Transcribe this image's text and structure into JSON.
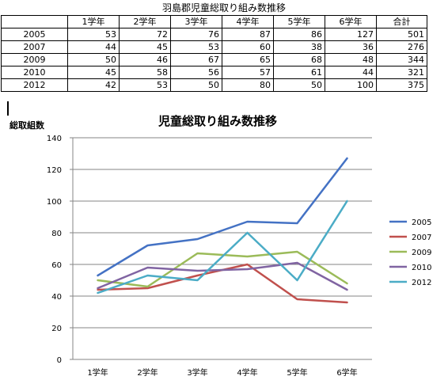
{
  "table": {
    "title": "羽島郡児童総取り組み数推移",
    "columns": [
      "",
      "1学年",
      "2学年",
      "3学年",
      "4学年",
      "5学年",
      "6学年",
      "合計"
    ],
    "rows": [
      [
        "2005",
        "53",
        "72",
        "76",
        "87",
        "86",
        "127",
        "501"
      ],
      [
        "2007",
        "44",
        "45",
        "53",
        "60",
        "38",
        "36",
        "276"
      ],
      [
        "2009",
        "50",
        "46",
        "67",
        "65",
        "68",
        "48",
        "344"
      ],
      [
        "2010",
        "45",
        "58",
        "56",
        "57",
        "61",
        "44",
        "321"
      ],
      [
        "2012",
        "42",
        "53",
        "50",
        "80",
        "50",
        "100",
        "375"
      ]
    ]
  },
  "chart_data": {
    "type": "line",
    "title": "児童総取り組み数推移",
    "ylabel": "総取組数",
    "xlabel": "",
    "categories": [
      "1学年",
      "2学年",
      "3学年",
      "4学年",
      "5学年",
      "6学年"
    ],
    "ylim": [
      0,
      140
    ],
    "yticks": [
      0,
      20,
      40,
      60,
      80,
      100,
      120,
      140
    ],
    "grid": true,
    "legend": "right",
    "series": [
      {
        "name": "2005",
        "values": [
          53,
          72,
          76,
          87,
          86,
          127
        ],
        "color": "#4472c4"
      },
      {
        "name": "2007",
        "values": [
          44,
          45,
          53,
          60,
          38,
          36
        ],
        "color": "#c0504d"
      },
      {
        "name": "2009",
        "values": [
          50,
          46,
          67,
          65,
          68,
          48
        ],
        "color": "#9bbb59"
      },
      {
        "name": "2010",
        "values": [
          45,
          58,
          56,
          57,
          61,
          44
        ],
        "color": "#8064a2"
      },
      {
        "name": "2012",
        "values": [
          42,
          53,
          50,
          80,
          50,
          100
        ],
        "color": "#4bacc6"
      }
    ]
  }
}
